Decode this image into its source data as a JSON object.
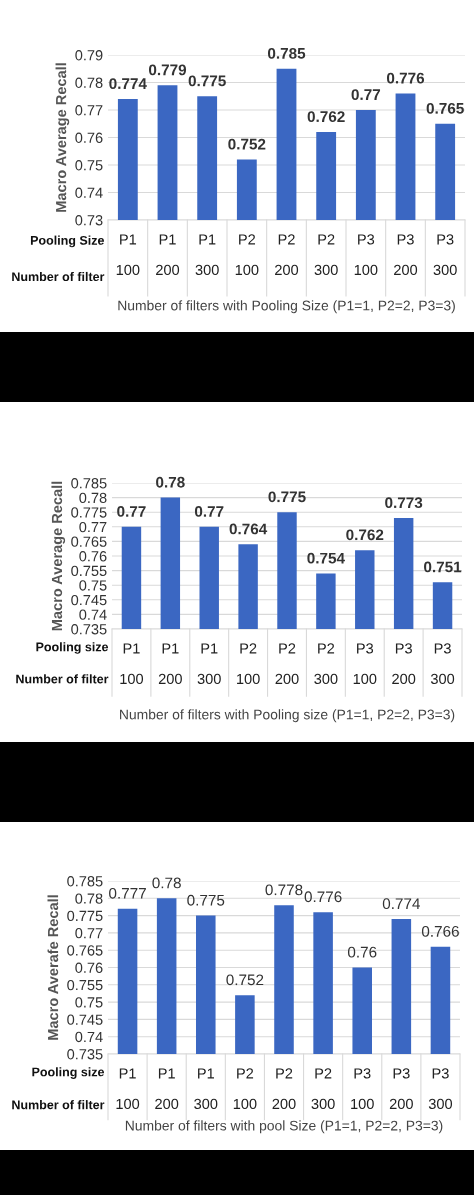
{
  "chart_data": [
    {
      "type": "bar",
      "ylabel": "Macro Average Recall",
      "xlabel": "Number of filters with Pooling Size (P1=1, P2=2, P3=3)",
      "categories": [
        "P1\n100",
        "P1\n200",
        "P1\n300",
        "P2\n100",
        "P2\n200",
        "P2\n300",
        "P3\n100",
        "P3\n200",
        "P3\n300"
      ],
      "values": [
        0.774,
        0.779,
        0.775,
        0.752,
        0.785,
        0.762,
        0.77,
        0.776,
        0.765
      ],
      "color": "#3b67c2",
      "ylim": [
        0.73,
        0.79
      ],
      "yticks": [
        0.73,
        0.74,
        0.75,
        0.76,
        0.77,
        0.78,
        0.79
      ],
      "grid": "y",
      "data_labels": true,
      "annotations": [
        "Pooling Size",
        "Number of filter"
      ]
    },
    {
      "type": "bar",
      "ylabel": "Macro Average Recall",
      "xlabel": "Number of filters with Pooling size (P1=1, P2=2, P3=3)",
      "categories": [
        "P1\n100",
        "P1\n200",
        "P1\n300",
        "P2\n100",
        "P2\n200",
        "P2\n300",
        "P3\n100",
        "P3\n200",
        "P3\n300"
      ],
      "values": [
        0.77,
        0.78,
        0.77,
        0.764,
        0.775,
        0.754,
        0.762,
        0.773,
        0.751
      ],
      "color": "#3b67c2",
      "ylim": [
        0.735,
        0.785
      ],
      "yticks": [
        0.735,
        0.74,
        0.745,
        0.75,
        0.755,
        0.76,
        0.765,
        0.77,
        0.775,
        0.78,
        0.785
      ],
      "grid": "y",
      "data_labels": true,
      "annotations": [
        "Pooling size",
        "Number of filter"
      ]
    },
    {
      "type": "bar",
      "ylabel": "Macro Averafe Recall",
      "xlabel": "Number of filters with pool Size (P1=1, P2=2, P3=3)",
      "categories": [
        "P1\n100",
        "P1\n200",
        "P1\n300",
        "P2\n100",
        "P2\n200",
        "P2\n300",
        "P3\n100",
        "P3\n200",
        "P3\n300"
      ],
      "values": [
        0.777,
        0.78,
        0.775,
        0.752,
        0.778,
        0.776,
        0.76,
        0.774,
        0.766
      ],
      "color": "#3b67c2",
      "ylim": [
        0.735,
        0.785
      ],
      "yticks": [
        0.735,
        0.74,
        0.745,
        0.75,
        0.755,
        0.76,
        0.765,
        0.77,
        0.775,
        0.78,
        0.785
      ],
      "grid": "y",
      "data_labels": true,
      "annotations": [
        "Pooling size",
        "Number of filter"
      ]
    }
  ]
}
